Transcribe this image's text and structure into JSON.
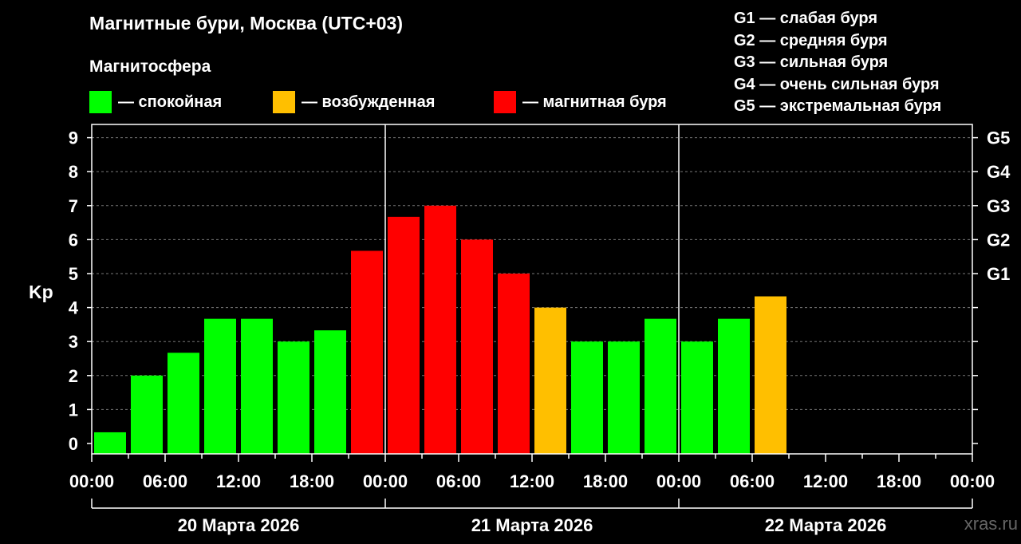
{
  "title": "Магнитные бури, Москва (UTC+03)",
  "legend": {
    "heading": "Магнитосфера",
    "items": [
      {
        "label": "— спокойная",
        "color": "#00ff00"
      },
      {
        "label": "— возбужденная",
        "color": "#ffbf00"
      },
      {
        "label": "— магнитная буря",
        "color": "#ff0000"
      }
    ]
  },
  "g_legend": [
    "G1 — слабая буря",
    "G2 — средняя буря",
    "G3 — сильная буря",
    "G4 — очень сильная буря",
    "G5 — экстремальная буря"
  ],
  "watermark": "xras.ru",
  "chart_data": {
    "type": "bar",
    "ylabel": "Kp",
    "ylim": [
      0,
      9
    ],
    "yticks": [
      "0",
      "1",
      "2",
      "3",
      "4",
      "5",
      "6",
      "7",
      "8",
      "9"
    ],
    "right_ticks": [
      {
        "value": 5,
        "label": "G1"
      },
      {
        "value": 6,
        "label": "G2"
      },
      {
        "value": 7,
        "label": "G3"
      },
      {
        "value": 8,
        "label": "G4"
      },
      {
        "value": 9,
        "label": "G5"
      }
    ],
    "xtick_labels": [
      "00:00",
      "06:00",
      "12:00",
      "18:00",
      "00:00",
      "06:00",
      "12:00",
      "18:00",
      "00:00",
      "06:00",
      "12:00",
      "18:00",
      "00:00"
    ],
    "day_labels": [
      "20 Марта 2026",
      "21 Марта 2026",
      "22 Марта 2026"
    ],
    "slots_total": 24,
    "values": [
      0.33,
      2.0,
      2.67,
      3.67,
      3.67,
      3.0,
      3.33,
      5.67,
      6.67,
      7.0,
      6.0,
      5.0,
      4.0,
      3.0,
      3.0,
      3.67,
      3.0,
      3.67,
      4.33
    ],
    "status": [
      "calm",
      "calm",
      "calm",
      "calm",
      "calm",
      "calm",
      "calm",
      "storm",
      "storm",
      "storm",
      "storm",
      "storm",
      "active",
      "calm",
      "calm",
      "calm",
      "calm",
      "calm",
      "active"
    ],
    "status_colors": {
      "calm": "#00ff00",
      "active": "#ffbf00",
      "storm": "#ff0000"
    },
    "grid": true
  }
}
